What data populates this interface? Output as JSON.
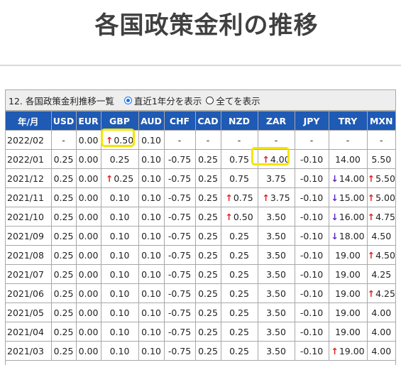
{
  "page": {
    "title": "各国政策金利の推移"
  },
  "panel": {
    "title": "12. 各国政策金利推移一覧",
    "radio_options": [
      {
        "label": "直近1年分を表示",
        "checked": true
      },
      {
        "label": "全てを表示",
        "checked": false
      }
    ]
  },
  "colors": {
    "header_bg": "#1f5ab4",
    "up_arrow": "#e21d1d",
    "down_arrow": "#5b28c7",
    "highlight": "#f5e400"
  },
  "icons": {
    "up": "up-arrow-icon",
    "down": "down-arrow-icon"
  },
  "table": {
    "columns": [
      "年/月",
      "USD",
      "EUR",
      "GBP",
      "AUD",
      "CHF",
      "CAD",
      "NZD",
      "ZAR",
      "JPY",
      "TRY",
      "MXN"
    ],
    "rows": [
      [
        "2022/02",
        "-",
        "0.00",
        "↑0.50",
        "0.10",
        "-",
        "-",
        "-",
        "-",
        "-",
        "-",
        "-"
      ],
      [
        "2022/01",
        "0.25",
        "0.00",
        "0.25",
        "0.10",
        "-0.75",
        "0.25",
        "0.75",
        "↑4.00",
        "-0.10",
        "14.00",
        "5.50"
      ],
      [
        "2021/12",
        "0.25",
        "0.00",
        "↑0.25",
        "0.10",
        "-0.75",
        "0.25",
        "0.75",
        "3.75",
        "-0.10",
        "↓14.00",
        "↑5.50"
      ],
      [
        "2021/11",
        "0.25",
        "0.00",
        "0.10",
        "0.10",
        "-0.75",
        "0.25",
        "↑0.75",
        "↑3.75",
        "-0.10",
        "↓15.00",
        "↑5.00"
      ],
      [
        "2021/10",
        "0.25",
        "0.00",
        "0.10",
        "0.10",
        "-0.75",
        "0.25",
        "↑0.50",
        "3.50",
        "-0.10",
        "↓16.00",
        "↑4.75"
      ],
      [
        "2021/09",
        "0.25",
        "0.00",
        "0.10",
        "0.10",
        "-0.75",
        "0.25",
        "0.25",
        "3.50",
        "-0.10",
        "↓18.00",
        "4.50"
      ],
      [
        "2021/08",
        "0.25",
        "0.00",
        "0.10",
        "0.10",
        "-0.75",
        "0.25",
        "0.25",
        "3.50",
        "-0.10",
        "19.00",
        "↑4.50"
      ],
      [
        "2021/07",
        "0.25",
        "0.00",
        "0.10",
        "0.10",
        "-0.75",
        "0.25",
        "0.25",
        "3.50",
        "-0.10",
        "19.00",
        "4.25"
      ],
      [
        "2021/06",
        "0.25",
        "0.00",
        "0.10",
        "0.10",
        "-0.75",
        "0.25",
        "0.25",
        "3.50",
        "-0.10",
        "19.00",
        "↑4.25"
      ],
      [
        "2021/05",
        "0.25",
        "0.00",
        "0.10",
        "0.10",
        "-0.75",
        "0.25",
        "0.25",
        "3.50",
        "-0.10",
        "19.00",
        "4.00"
      ],
      [
        "2021/04",
        "0.25",
        "0.00",
        "0.10",
        "0.10",
        "-0.75",
        "0.25",
        "0.25",
        "3.50",
        "-0.10",
        "19.00",
        "4.00"
      ],
      [
        "2021/03",
        "0.25",
        "0.00",
        "0.10",
        "0.10",
        "-0.75",
        "0.25",
        "0.25",
        "3.50",
        "-0.10",
        "↑19.00",
        "4.00"
      ]
    ],
    "highlighted": [
      "GBP 2022/02",
      "ZAR 2022/01"
    ]
  }
}
